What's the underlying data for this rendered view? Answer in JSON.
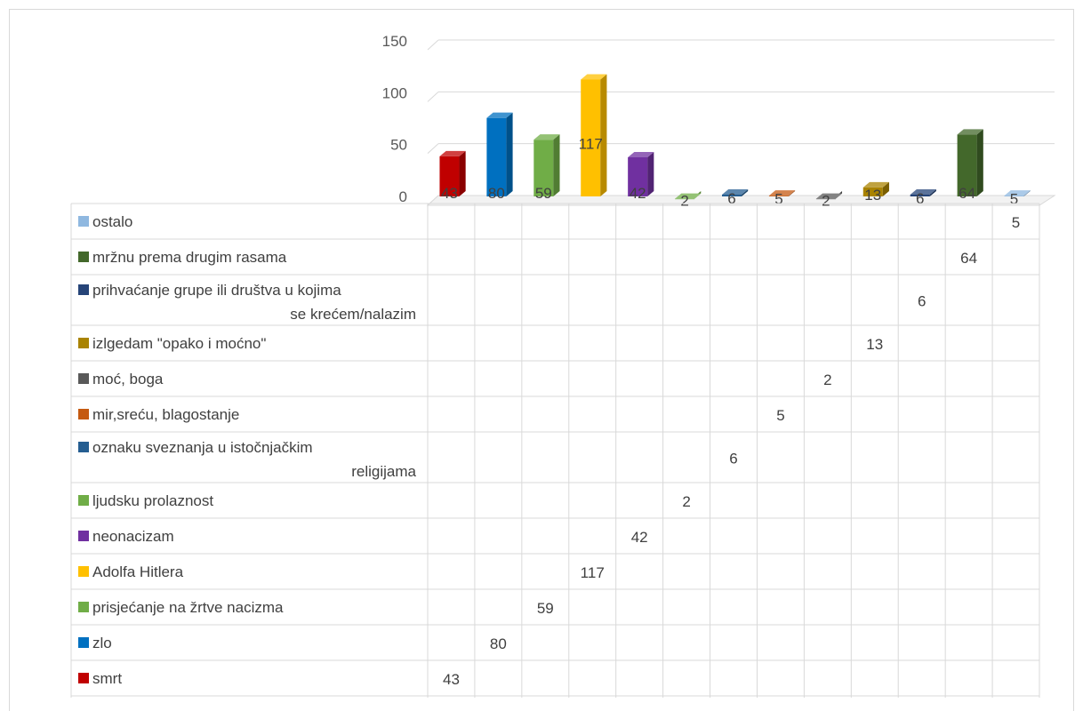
{
  "chart_data": {
    "type": "bar",
    "title": "",
    "xlabel": "",
    "ylabel": "",
    "ylim": [
      0,
      150
    ],
    "yticks": [
      0,
      50,
      100,
      150
    ],
    "grid": true,
    "legend": "data-table-left",
    "categories": [
      "smrt",
      "zlo",
      "prisjećanje na žrtve nacizma",
      "Adolfa Hitlera",
      "neonacizam",
      "ljudsku prolaznost",
      "oznaku sveznanja u istočnjačkim religijama",
      "mir,sreću, blagostanje",
      "moć, boga",
      "izlgedam \"opako i moćno\"",
      "prihvaćanje grupe ili društva u kojima se krećem/nalazim",
      "mržnu prema drugim rasama",
      "ostalo"
    ],
    "legend_lines": [
      [
        "smrt"
      ],
      [
        "zlo"
      ],
      [
        "prisjećanje na žrtve nacizma"
      ],
      [
        "Adolfa Hitlera"
      ],
      [
        "neonacizam"
      ],
      [
        "ljudsku prolaznost"
      ],
      [
        "oznaku sveznanja u istočnjačkim",
        "religijama"
      ],
      [
        "mir,sreću, blagostanje"
      ],
      [
        "moć, boga"
      ],
      [
        "izlgedam \"opako i moćno\""
      ],
      [
        "prihvaćanje grupe ili društva u kojima",
        "se krećem/nalazim"
      ],
      [
        "mržnu prema drugim rasama"
      ],
      [
        "ostalo"
      ]
    ],
    "values": [
      43,
      80,
      59,
      117,
      42,
      2,
      6,
      5,
      2,
      13,
      6,
      64,
      5
    ],
    "colors": [
      "#c00000",
      "#0070c0",
      "#70ad47",
      "#ffc000",
      "#7030a0",
      "#70ad47",
      "#255e91",
      "#c55a11",
      "#595959",
      "#a98300",
      "#264478",
      "#43682b",
      "#8fb8e0"
    ]
  }
}
